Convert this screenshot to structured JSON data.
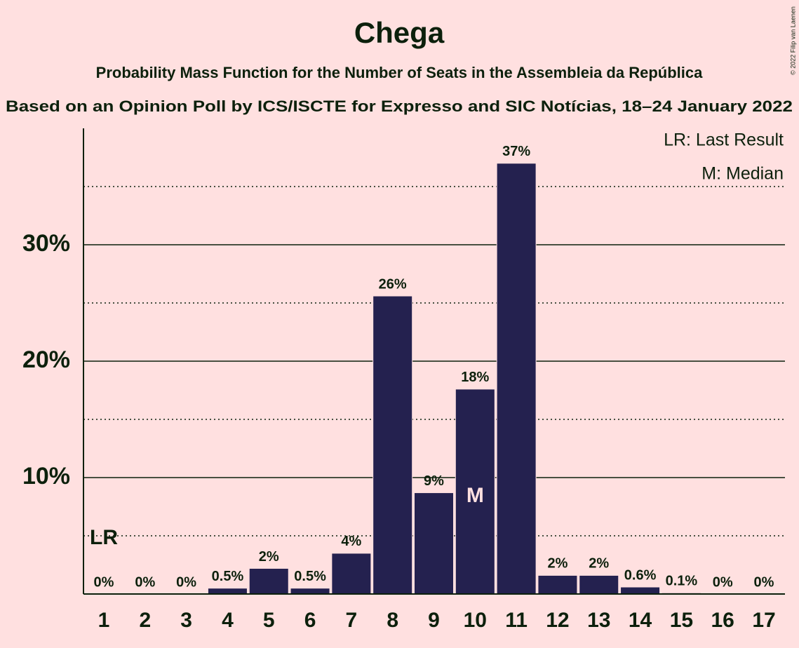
{
  "chart_data": {
    "type": "bar",
    "title": "Chega",
    "subtitle": "Probability Mass Function for the Number of Seats in the Assembleia da República",
    "subtitle2": "Based on an Opinion Poll by ICS/ISCTE for Expresso and SIC Notícias, 18–24 January 2022",
    "copyright": "© 2022 Filip van Laenen",
    "categories": [
      "1",
      "2",
      "3",
      "4",
      "5",
      "6",
      "7",
      "8",
      "9",
      "10",
      "11",
      "12",
      "13",
      "14",
      "15",
      "16",
      "17"
    ],
    "values": [
      0,
      0,
      0,
      0.5,
      2.2,
      0.5,
      3.5,
      25.6,
      8.7,
      17.6,
      37,
      1.6,
      1.6,
      0.6,
      0.1,
      0,
      0
    ],
    "value_labels": [
      "0%",
      "0%",
      "0%",
      "0.5%",
      "2%",
      "0.5%",
      "4%",
      "26%",
      "9%",
      "18%",
      "37%",
      "2%",
      "2%",
      "0.6%",
      "0.1%",
      "0%",
      "0%"
    ],
    "color": "#24214f",
    "ylim": [
      0,
      40
    ],
    "yticks": [
      {
        "value": 10,
        "label": "10%"
      },
      {
        "value": 20,
        "label": "20%"
      },
      {
        "value": 30,
        "label": "30%"
      }
    ],
    "minor_yticks": [
      5,
      15,
      25,
      35
    ],
    "grid": true,
    "markers": [
      {
        "label": "LR",
        "category": "1"
      },
      {
        "label": "M",
        "category": "10"
      }
    ],
    "legend": [
      "LR: Last Result",
      "M: Median"
    ],
    "legend_position": "top-right"
  }
}
